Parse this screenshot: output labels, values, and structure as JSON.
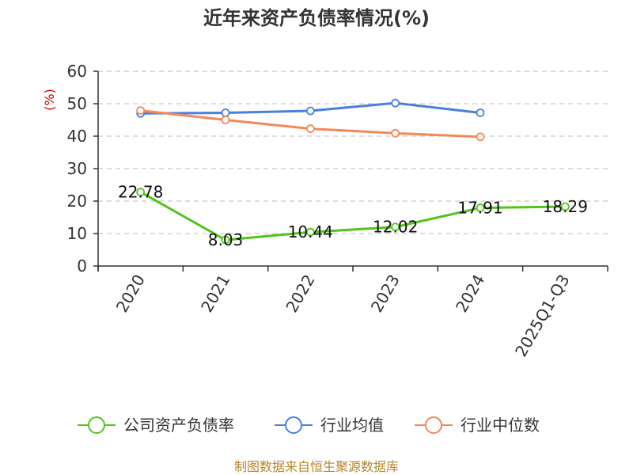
{
  "chart_data": {
    "type": "line",
    "title": "近年来资产负债率情况(%)",
    "ylabel": "(%)",
    "xlabel": "",
    "categories": [
      "2020",
      "2021",
      "2022",
      "2023",
      "2024",
      "2025Q1-Q3"
    ],
    "ylim": [
      0,
      60
    ],
    "yticks": [
      0,
      10,
      20,
      30,
      40,
      50,
      60
    ],
    "grid": true,
    "legend_position": "bottom",
    "series": [
      {
        "name": "公司资产负债率",
        "color": "#52c41a",
        "values": [
          22.78,
          8.03,
          10.44,
          12.02,
          17.91,
          18.29
        ],
        "data_labels": [
          "22.78",
          "8.03",
          "10.44",
          "12.02",
          "17.91",
          "18.29"
        ]
      },
      {
        "name": "行业均值",
        "color": "#4a7fe0",
        "values": [
          47.0,
          47.2,
          47.8,
          50.2,
          47.2,
          null
        ]
      },
      {
        "name": "行业中位数",
        "color": "#f5885a",
        "values": [
          47.9,
          45.0,
          42.3,
          40.9,
          39.8,
          null
        ]
      }
    ]
  },
  "source": "制图数据来自恒生聚源数据库"
}
